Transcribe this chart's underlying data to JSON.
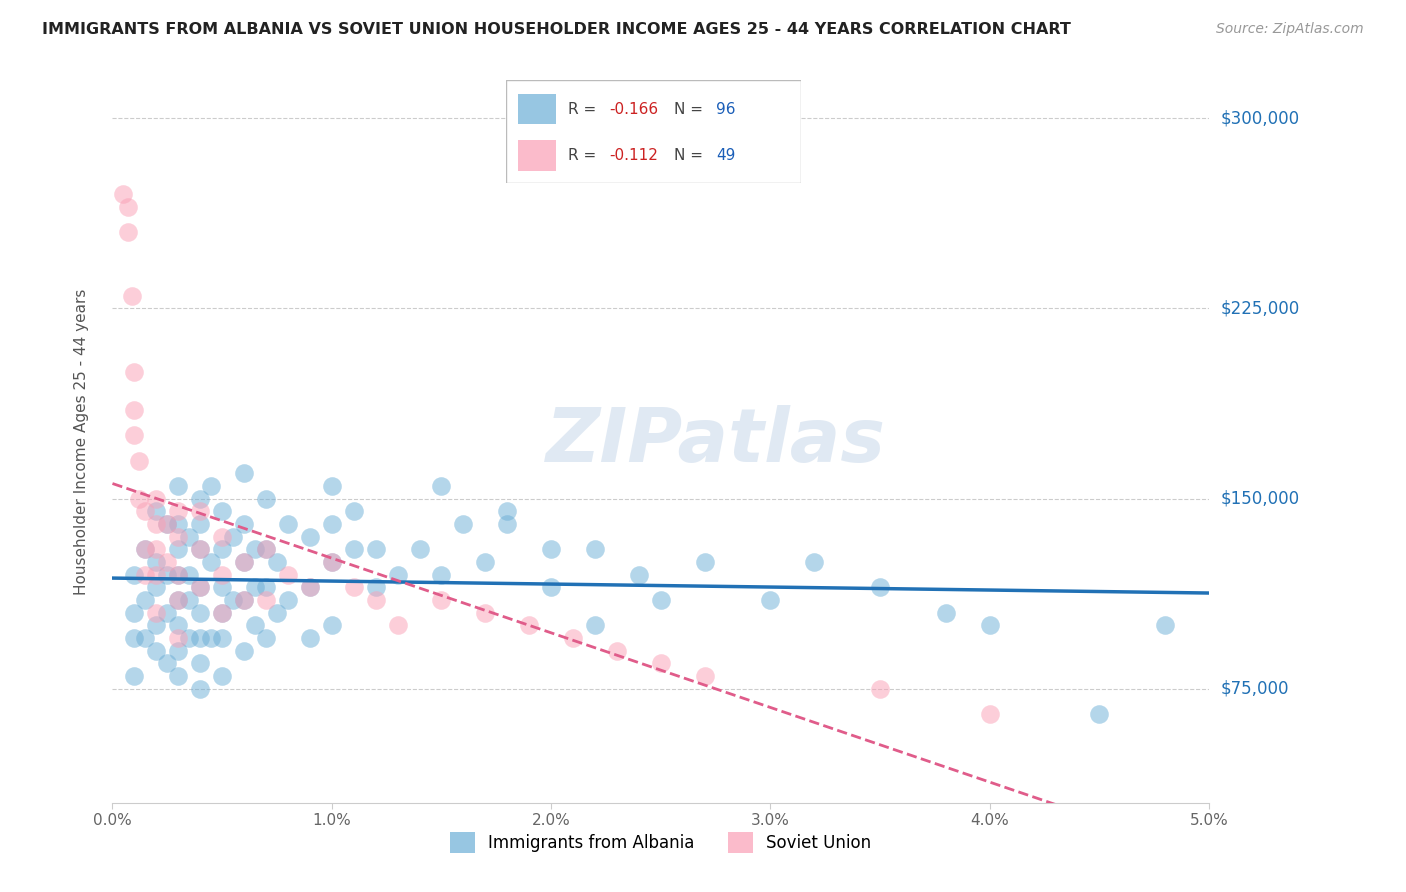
{
  "title": "IMMIGRANTS FROM ALBANIA VS SOVIET UNION HOUSEHOLDER INCOME AGES 25 - 44 YEARS CORRELATION CHART",
  "source": "Source: ZipAtlas.com",
  "ylabel": "Householder Income Ages 25 - 44 years",
  "y_ticks": [
    75000,
    150000,
    225000,
    300000
  ],
  "y_tick_labels": [
    "$75,000",
    "$150,000",
    "$225,000",
    "$300,000"
  ],
  "x_ticks": [
    0.0,
    0.01,
    0.02,
    0.03,
    0.04,
    0.05
  ],
  "x_tick_labels": [
    "0.0%",
    "1.0%",
    "2.0%",
    "3.0%",
    "4.0%",
    "5.0%"
  ],
  "x_min": 0.0,
  "x_max": 0.05,
  "y_min": 30000,
  "y_max": 315000,
  "albania_R": -0.166,
  "albania_N": 96,
  "soviet_R": -0.112,
  "soviet_N": 49,
  "albania_color": "#6baed6",
  "soviet_color": "#fa9fb5",
  "albania_line_color": "#2171b5",
  "soviet_line_color": "#e05c8a",
  "watermark": "ZIPatlas",
  "legend_label_albania": "Immigrants from Albania",
  "legend_label_soviet": "Soviet Union",
  "albania_x": [
    0.001,
    0.001,
    0.001,
    0.001,
    0.0015,
    0.0015,
    0.0015,
    0.002,
    0.002,
    0.002,
    0.002,
    0.002,
    0.0025,
    0.0025,
    0.0025,
    0.0025,
    0.003,
    0.003,
    0.003,
    0.003,
    0.003,
    0.003,
    0.003,
    0.003,
    0.0035,
    0.0035,
    0.0035,
    0.0035,
    0.004,
    0.004,
    0.004,
    0.004,
    0.004,
    0.004,
    0.004,
    0.004,
    0.0045,
    0.0045,
    0.0045,
    0.005,
    0.005,
    0.005,
    0.005,
    0.005,
    0.005,
    0.0055,
    0.0055,
    0.006,
    0.006,
    0.006,
    0.006,
    0.006,
    0.0065,
    0.0065,
    0.0065,
    0.007,
    0.007,
    0.007,
    0.007,
    0.0075,
    0.0075,
    0.008,
    0.008,
    0.009,
    0.009,
    0.009,
    0.01,
    0.01,
    0.01,
    0.01,
    0.011,
    0.011,
    0.012,
    0.012,
    0.013,
    0.014,
    0.015,
    0.015,
    0.016,
    0.017,
    0.018,
    0.018,
    0.02,
    0.02,
    0.022,
    0.022,
    0.024,
    0.025,
    0.027,
    0.03,
    0.032,
    0.035,
    0.038,
    0.04,
    0.045,
    0.048
  ],
  "albania_y": [
    105000,
    120000,
    95000,
    80000,
    130000,
    110000,
    95000,
    145000,
    125000,
    115000,
    100000,
    90000,
    140000,
    120000,
    105000,
    85000,
    155000,
    140000,
    130000,
    120000,
    110000,
    100000,
    90000,
    80000,
    135000,
    120000,
    110000,
    95000,
    150000,
    140000,
    130000,
    115000,
    105000,
    95000,
    85000,
    75000,
    155000,
    125000,
    95000,
    145000,
    130000,
    115000,
    105000,
    95000,
    80000,
    135000,
    110000,
    160000,
    140000,
    125000,
    110000,
    90000,
    130000,
    115000,
    100000,
    150000,
    130000,
    115000,
    95000,
    125000,
    105000,
    140000,
    110000,
    135000,
    115000,
    95000,
    155000,
    140000,
    125000,
    100000,
    130000,
    145000,
    115000,
    130000,
    120000,
    130000,
    155000,
    120000,
    140000,
    125000,
    140000,
    145000,
    115000,
    130000,
    100000,
    130000,
    120000,
    110000,
    125000,
    110000,
    125000,
    115000,
    105000,
    100000,
    65000,
    100000
  ],
  "soviet_x": [
    0.0005,
    0.0007,
    0.0007,
    0.0009,
    0.001,
    0.001,
    0.001,
    0.0012,
    0.0012,
    0.0015,
    0.0015,
    0.0015,
    0.002,
    0.002,
    0.002,
    0.002,
    0.002,
    0.0025,
    0.0025,
    0.003,
    0.003,
    0.003,
    0.003,
    0.003,
    0.004,
    0.004,
    0.004,
    0.005,
    0.005,
    0.005,
    0.006,
    0.006,
    0.007,
    0.007,
    0.008,
    0.009,
    0.01,
    0.011,
    0.012,
    0.013,
    0.015,
    0.017,
    0.019,
    0.021,
    0.023,
    0.025,
    0.027,
    0.035,
    0.04
  ],
  "soviet_y": [
    270000,
    265000,
    255000,
    230000,
    200000,
    185000,
    175000,
    165000,
    150000,
    145000,
    130000,
    120000,
    150000,
    140000,
    130000,
    120000,
    105000,
    140000,
    125000,
    145000,
    135000,
    120000,
    110000,
    95000,
    145000,
    130000,
    115000,
    135000,
    120000,
    105000,
    125000,
    110000,
    130000,
    110000,
    120000,
    115000,
    125000,
    115000,
    110000,
    100000,
    110000,
    105000,
    100000,
    95000,
    90000,
    85000,
    80000,
    75000,
    65000
  ]
}
